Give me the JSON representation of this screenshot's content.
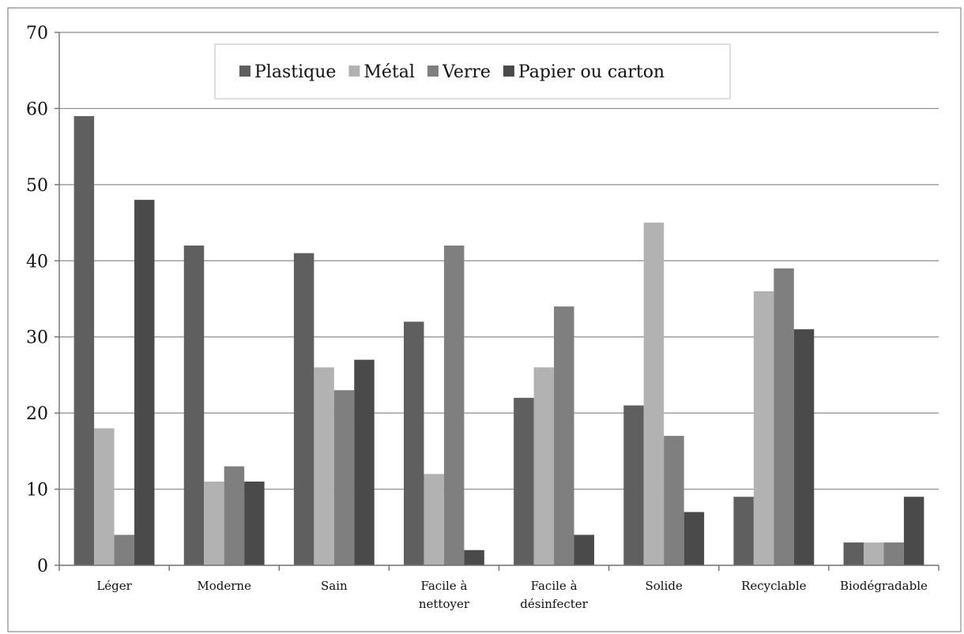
{
  "chart_data": {
    "type": "bar",
    "categories": [
      [
        "Léger"
      ],
      [
        "Moderne"
      ],
      [
        "Sain"
      ],
      [
        "Facile à",
        "nettoyer"
      ],
      [
        "Facile à",
        "désinfecter"
      ],
      [
        "Solide"
      ],
      [
        "Recyclable"
      ],
      [
        "Biodégradable"
      ]
    ],
    "series": [
      {
        "name": "Plastique",
        "color": "#5f5f5f",
        "values": [
          59,
          42,
          41,
          32,
          22,
          21,
          9,
          3
        ]
      },
      {
        "name": "Métal",
        "color": "#b2b2b2",
        "values": [
          18,
          11,
          26,
          12,
          26,
          45,
          36,
          3
        ]
      },
      {
        "name": "Verre",
        "color": "#7f7f7f",
        "values": [
          4,
          13,
          23,
          42,
          34,
          17,
          39,
          3
        ]
      },
      {
        "name": "Papier ou carton",
        "color": "#4a4a4a",
        "values": [
          48,
          11,
          27,
          2,
          4,
          7,
          31,
          9
        ]
      }
    ],
    "ylim": [
      0,
      70
    ],
    "yticks": [
      0,
      10,
      20,
      30,
      40,
      50,
      60,
      70
    ],
    "grid": true,
    "legend_position": "top"
  }
}
